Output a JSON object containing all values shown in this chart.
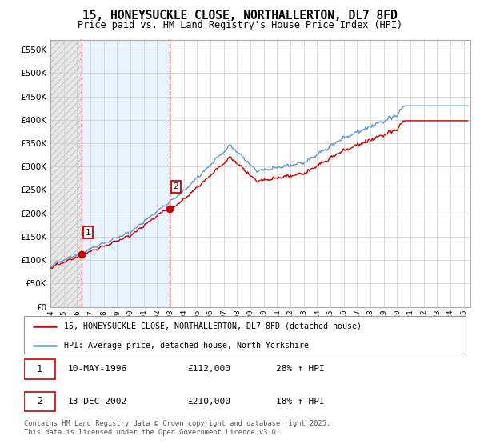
{
  "title": "15, HONEYSUCKLE CLOSE, NORTHALLERTON, DL7 8FD",
  "subtitle": "Price paid vs. HM Land Registry's House Price Index (HPI)",
  "ylim": [
    0,
    570000
  ],
  "xlim_start": 1994.0,
  "xlim_end": 2025.5,
  "purchase1_x": 1996.36,
  "purchase1_y": 112000,
  "purchase2_x": 2002.96,
  "purchase2_y": 210000,
  "line_color_red": "#cc0000",
  "line_color_blue": "#6699cc",
  "shaded_color": "#ddeeff",
  "hatch_color": "#bbbbbb",
  "legend_label_red": "15, HONEYSUCKLE CLOSE, NORTHALLERTON, DL7 8FD (detached house)",
  "legend_label_blue": "HPI: Average price, detached house, North Yorkshire",
  "purchase1_label": "1",
  "purchase1_date": "10-MAY-1996",
  "purchase1_price": "£112,000",
  "purchase1_hpi": "28% ↑ HPI",
  "purchase2_label": "2",
  "purchase2_date": "13-DEC-2002",
  "purchase2_price": "£210,000",
  "purchase2_hpi": "18% ↑ HPI",
  "footer": "Contains HM Land Registry data © Crown copyright and database right 2025.\nThis data is licensed under the Open Government Licence v3.0.",
  "grid_color": "#cccccc",
  "background_color": "#ffffff"
}
